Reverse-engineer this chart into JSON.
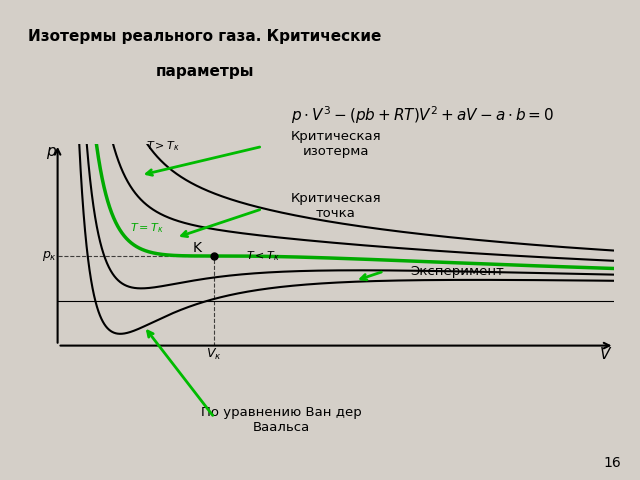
{
  "bg_color": "#d4cfc8",
  "title_line1": "Изотермы реального газа. Критические",
  "title_line2": "параметры",
  "title_box_color": "#cce8f4",
  "title_border_color": "#c47d3a",
  "formula_box_color": "#ffffff",
  "formula_border_color": "#cc0000",
  "label_kritiso_text": "Критическая\nизотерма",
  "label_kritpt_text": "Критическая\nточка",
  "label_eksper_text": "Эксперимент",
  "label_vander_text": "По уравнению Ван дер\nВаальса",
  "label_box_color": "#d4f0e0",
  "label_eksper_color": "#fce8c8",
  "label_border_color": "#c47d3a",
  "page_number": "16",
  "graph_bg": "#ffffff",
  "a_vdw": 3.0,
  "b_vdw": 1.0,
  "R_vdw": 8.0,
  "T_above1_factor": 1.35,
  "T_above2_factor": 1.15,
  "T_below1_factor": 0.88,
  "T_below2_factor": 0.76,
  "p_max_factor": 3.5,
  "p_min_factor": 1.0
}
